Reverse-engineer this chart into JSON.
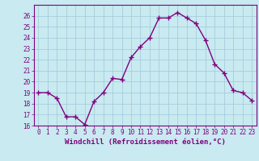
{
  "x": [
    0,
    1,
    2,
    3,
    4,
    5,
    6,
    7,
    8,
    9,
    10,
    11,
    12,
    13,
    14,
    15,
    16,
    17,
    18,
    19,
    20,
    21,
    22,
    23
  ],
  "y": [
    19,
    19,
    18.5,
    16.8,
    16.8,
    16.1,
    18.2,
    19.0,
    20.3,
    20.2,
    22.2,
    23.2,
    24.0,
    25.8,
    25.8,
    26.3,
    25.8,
    25.3,
    23.8,
    21.6,
    20.8,
    19.2,
    19.0,
    18.3
  ],
  "line_color": "#800080",
  "marker": "+",
  "marker_size": 4,
  "bg_color": "#c8eaf0",
  "grid_color": "#a0c8d8",
  "xlabel": "Windchill (Refroidissement éolien,°C)",
  "ylim": [
    16,
    27
  ],
  "xlim_min": -0.5,
  "xlim_max": 23.5,
  "yticks": [
    16,
    17,
    18,
    19,
    20,
    21,
    22,
    23,
    24,
    25,
    26
  ],
  "xticks": [
    0,
    1,
    2,
    3,
    4,
    5,
    6,
    7,
    8,
    9,
    10,
    11,
    12,
    13,
    14,
    15,
    16,
    17,
    18,
    19,
    20,
    21,
    22,
    23
  ],
  "tick_label_size": 5.5,
  "xlabel_size": 6.5,
  "line_width": 1.0,
  "marker_edge_width": 1.0
}
